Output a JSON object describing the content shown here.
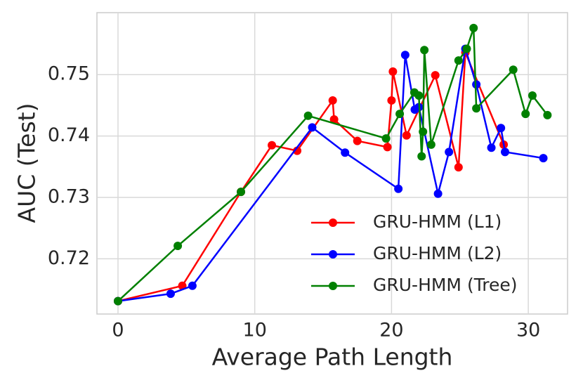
{
  "chart_data": {
    "type": "line",
    "xlabel": "Average Path Length",
    "ylabel": "AUC (Test)",
    "xlim": [
      -1.54,
      32.87
    ],
    "ylim": [
      0.711,
      0.7601
    ],
    "xticks": [
      0,
      10,
      20,
      30
    ],
    "yticks": [
      0.72,
      0.73,
      0.74,
      0.75
    ],
    "grid": true,
    "legend": "lower right",
    "series": [
      {
        "name": "GRU-HMM (L1)",
        "color": "#ff0000",
        "x": [
          0,
          4.7,
          8.99,
          11.25,
          13.1,
          15.7,
          15.8,
          17.5,
          19.7,
          20.0,
          20.1,
          21.1,
          23.2,
          24.9,
          25.4,
          28.2
        ],
        "values": [
          0.7131,
          0.7156,
          0.7309,
          0.7385,
          0.7376,
          0.7458,
          0.7427,
          0.7392,
          0.7382,
          0.7458,
          0.7505,
          0.7401,
          0.7499,
          0.7349,
          0.7536,
          0.7386
        ]
      },
      {
        "name": "GRU-HMM (L2)",
        "color": "#0000ff",
        "x": [
          0,
          3.85,
          5.44,
          14.2,
          16.6,
          20.5,
          21.0,
          21.7,
          22.0,
          23.4,
          24.2,
          25.4,
          26.2,
          27.3,
          28.0,
          28.3,
          31.1
        ],
        "values": [
          0.7131,
          0.7143,
          0.7156,
          0.7414,
          0.7373,
          0.7314,
          0.7532,
          0.7443,
          0.7447,
          0.7306,
          0.7374,
          0.7542,
          0.7484,
          0.7381,
          0.7413,
          0.7374,
          0.7364
        ]
      },
      {
        "name": "GRU-HMM (Tree)",
        "color": "#008000",
        "x": [
          0,
          4.37,
          8.99,
          13.9,
          19.6,
          20.6,
          21.67,
          22.0,
          22.2,
          22.3,
          22.4,
          22.9,
          24.9,
          25.5,
          26.0,
          26.2,
          28.9,
          29.8,
          30.3,
          31.4
        ],
        "values": [
          0.7131,
          0.7221,
          0.7309,
          0.7433,
          0.7396,
          0.7436,
          0.7471,
          0.7466,
          0.7367,
          0.7407,
          0.754,
          0.7386,
          0.7523,
          0.7542,
          0.7576,
          0.7445,
          0.7508,
          0.7436,
          0.7466,
          0.7434
        ]
      }
    ]
  }
}
